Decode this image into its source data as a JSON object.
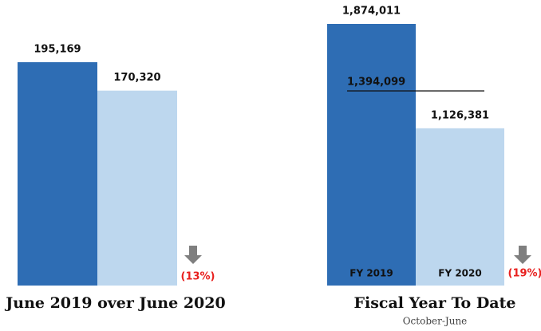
{
  "chart_data": [
    {
      "type": "bar",
      "title": "June 2019 over June 2020",
      "categories": [
        null,
        null
      ],
      "values": [
        195169,
        170320
      ],
      "value_labels": [
        "195,169",
        "170,320"
      ],
      "colors": [
        "#2e6db4",
        "#bdd7ee"
      ],
      "annotation": "(13%)",
      "annotation_color": "#e8201e"
    },
    {
      "type": "bar",
      "title": "Fiscal Year To Date",
      "subtitle": "October-June",
      "categories": [
        "FY 2019",
        "FY 2020"
      ],
      "values": [
        1874011,
        1126381
      ],
      "value_labels": [
        "1,874,011",
        "1,126,381"
      ],
      "colors": [
        "#2e6db4",
        "#bdd7ee"
      ],
      "reference_line": {
        "value": 1394099,
        "label": "1,394,099"
      },
      "annotation": "(19%)",
      "annotation_color": "#e8201e"
    }
  ]
}
